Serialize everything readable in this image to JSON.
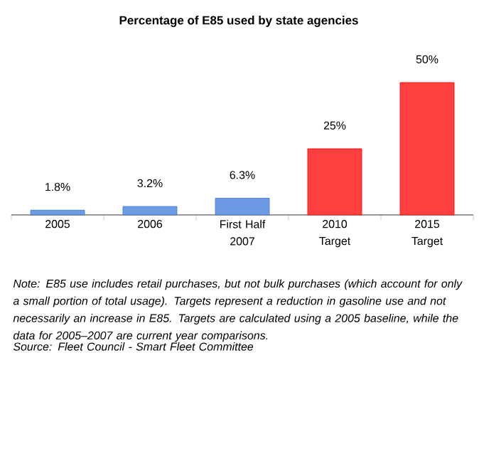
{
  "chart_data": {
    "type": "bar",
    "title": "Percentage of E85 used by state agencies",
    "categories": [
      "2005",
      "2006",
      "First Half 2007",
      "2010 Target",
      "2015 Target"
    ],
    "values": [
      1.8,
      3.2,
      6.3,
      25,
      50
    ],
    "colors": [
      "#3c78d8",
      "#3c78d8",
      "#3c78d8",
      "#ff0000",
      "#ff0000"
    ],
    "value_labels": [
      "1.8%",
      "3.2%",
      "6.3%",
      "25%",
      "50%"
    ],
    "annotations": [
      "Note: E85 use includes retail purchases, but not bulk purchases (which account for only a small portion of total usage). Targets represent a reduction in gasoline use and not necessarily an increase in E85. Targets are calculated using a 2005 baseline, while the data for 2005–2007 are current year comparisons.",
      "Source: Fleet Council - Smart Fleet Committee"
    ]
  }
}
